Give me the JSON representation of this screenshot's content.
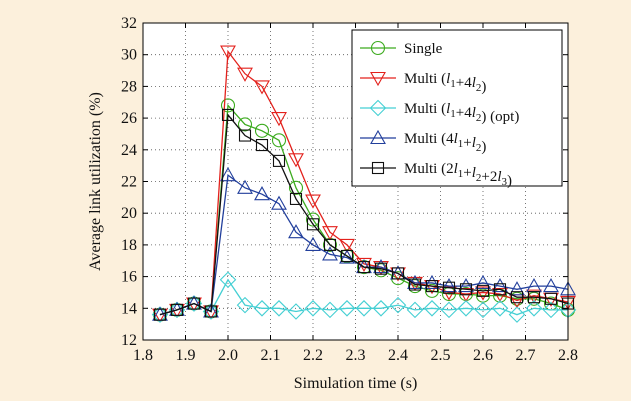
{
  "chart_data": {
    "type": "line",
    "title": "",
    "xlabel": "Simulation time (s)",
    "ylabel": "Average link utilization (%)",
    "xlim": [
      1.8,
      2.8
    ],
    "ylim": [
      12,
      32
    ],
    "xticks": [
      "1.8",
      "1.9",
      "2.0",
      "2.1",
      "2.2",
      "2.3",
      "2.4",
      "2.5",
      "2.6",
      "2.7",
      "2.8"
    ],
    "yticks": [
      "12",
      "14",
      "16",
      "18",
      "20",
      "22",
      "24",
      "26",
      "28",
      "30",
      "32"
    ],
    "grid": true,
    "grid_style": "dotted",
    "legend_position": "top-right",
    "x": [
      1.84,
      1.88,
      1.92,
      1.96,
      2.0,
      2.04,
      2.08,
      2.12,
      2.16,
      2.2,
      2.24,
      2.28,
      2.32,
      2.36,
      2.4,
      2.44,
      2.48,
      2.52,
      2.56,
      2.6,
      2.64,
      2.68,
      2.72,
      2.76,
      2.8
    ],
    "series": [
      {
        "name": "Single",
        "legend_parts": [
          [
            "Single",
            null
          ]
        ],
        "color": "#3cab1e",
        "marker": "circle",
        "values": [
          13.6,
          13.9,
          14.3,
          13.8,
          26.8,
          25.6,
          25.2,
          24.6,
          21.6,
          19.6,
          18.0,
          17.3,
          16.6,
          16.4,
          15.9,
          15.4,
          15.1,
          14.9,
          14.9,
          14.8,
          14.8,
          14.6,
          14.6,
          14.3,
          13.9
        ]
      },
      {
        "name": "Multi (l1+4l2)",
        "legend_parts": [
          [
            "Multi (",
            null
          ],
          [
            "l",
            "1"
          ],
          [
            "+4",
            null
          ],
          [
            "l",
            "2"
          ],
          [
            ")",
            null
          ]
        ],
        "color": "#e3211c",
        "marker": "triangle-down",
        "values": [
          13.6,
          13.9,
          14.3,
          13.8,
          30.2,
          28.8,
          28.0,
          26.0,
          23.4,
          20.8,
          18.8,
          18.0,
          16.8,
          16.6,
          16.2,
          15.6,
          15.4,
          15.0,
          14.9,
          15.0,
          14.9,
          14.5,
          14.8,
          14.6,
          14.4
        ]
      },
      {
        "name": "Multi (l1+4l2) (opt)",
        "legend_parts": [
          [
            "Multi (",
            null
          ],
          [
            "l",
            "1"
          ],
          [
            "+4",
            null
          ],
          [
            "l",
            "2"
          ],
          [
            ") (opt)",
            null
          ]
        ],
        "color": "#44cfd3",
        "marker": "diamond",
        "values": [
          13.6,
          13.9,
          14.3,
          13.8,
          15.8,
          14.2,
          14.0,
          14.0,
          13.8,
          14.0,
          13.9,
          14.0,
          14.0,
          14.0,
          14.2,
          13.9,
          14.0,
          13.9,
          14.0,
          13.9,
          14.0,
          13.6,
          14.0,
          13.9,
          13.9
        ]
      },
      {
        "name": "Multi (4l1+l2)",
        "legend_parts": [
          [
            "Multi (4",
            null
          ],
          [
            "l",
            "1"
          ],
          [
            "+",
            null
          ],
          [
            "l",
            "2"
          ],
          [
            ")",
            null
          ]
        ],
        "color": "#223f9c",
        "marker": "triangle-up",
        "values": [
          13.6,
          13.9,
          14.3,
          13.8,
          22.4,
          21.6,
          21.2,
          20.6,
          18.8,
          18.0,
          17.4,
          17.2,
          16.6,
          16.6,
          16.2,
          15.6,
          15.6,
          15.4,
          15.4,
          15.6,
          15.4,
          15.2,
          15.4,
          15.4,
          15.2
        ]
      },
      {
        "name": "Multi (2l1+l2+2l3)",
        "legend_parts": [
          [
            "Multi (2",
            null
          ],
          [
            "l",
            "1"
          ],
          [
            "+",
            null
          ],
          [
            "l",
            "2"
          ],
          [
            "+2",
            null
          ],
          [
            "l",
            "3"
          ],
          [
            ")",
            null
          ]
        ],
        "color": "#111111",
        "marker": "square",
        "values": [
          13.6,
          13.9,
          14.3,
          13.8,
          26.2,
          24.9,
          24.3,
          23.3,
          20.9,
          19.3,
          18.0,
          17.3,
          16.6,
          16.5,
          16.2,
          15.5,
          15.4,
          15.3,
          15.2,
          15.1,
          15.2,
          14.7,
          14.7,
          14.6,
          14.3
        ]
      }
    ]
  }
}
